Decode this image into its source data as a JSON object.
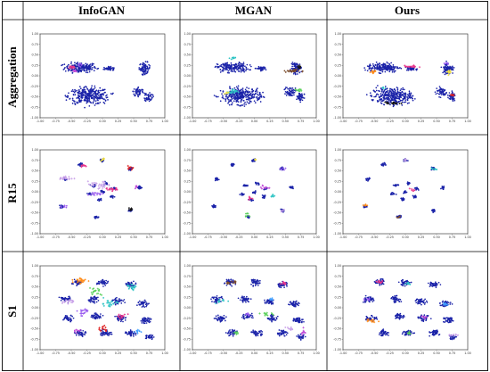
{
  "figure": {
    "column_headers": [
      "InfoGAN",
      "MGAN",
      "Ours"
    ],
    "row_labels": [
      "Aggregation",
      "R15",
      "S1"
    ]
  },
  "colors": {
    "real_points": "#1a22a8",
    "generated_palette": [
      "#e8358a",
      "#c04bd8",
      "#9a5cf0",
      "#2ec4c4",
      "#58d058",
      "#f0e040",
      "#ff8c1a",
      "#e02020",
      "#7a4a2a",
      "#111111",
      "#c8a0e8",
      "#40a0ff"
    ]
  },
  "chart_data": {
    "type": "scatter",
    "layout": "3x3 grid",
    "xlim": [
      -1.0,
      1.0
    ],
    "ylim": [
      -1.0,
      1.0
    ],
    "xticks": [
      "-1.00",
      "-0.75",
      "-0.50",
      "-0.25",
      "0.00",
      "0.25",
      "0.50",
      "0.75",
      "1.00"
    ],
    "yticks": [
      "1.00",
      "0.75",
      "0.50",
      "0.25",
      "0.00",
      "-0.25",
      "-0.50",
      "-0.75",
      "-1.00"
    ],
    "rows": [
      {
        "dataset": "Aggregation",
        "real_clusters": [
          {
            "cx": -0.35,
            "cy": 0.2,
            "rx": 0.28,
            "ry": 0.13,
            "n": 190
          },
          {
            "cx": 0.1,
            "cy": 0.17,
            "rx": 0.09,
            "ry": 0.05,
            "n": 45
          },
          {
            "cx": 0.68,
            "cy": 0.18,
            "rx": 0.1,
            "ry": 0.15,
            "n": 75
          },
          {
            "cx": -0.22,
            "cy": -0.48,
            "rx": 0.36,
            "ry": 0.22,
            "n": 320
          },
          {
            "cx": 0.58,
            "cy": -0.38,
            "rx": 0.1,
            "ry": 0.13,
            "n": 55
          },
          {
            "cx": 0.74,
            "cy": -0.5,
            "rx": 0.07,
            "ry": 0.12,
            "n": 45
          }
        ],
        "panels": [
          {
            "model": "InfoGAN",
            "generated": [
              {
                "cx": -0.5,
                "cy": 0.2,
                "rx": 0.08,
                "ry": 0.05,
                "n": 14,
                "c": 0
              },
              {
                "cx": -0.45,
                "cy": 0.12,
                "rx": 0.06,
                "ry": 0.04,
                "n": 10,
                "c": 1
              },
              {
                "cx": -0.38,
                "cy": 0.25,
                "rx": 0.05,
                "ry": 0.04,
                "n": 8,
                "c": 2
              }
            ]
          },
          {
            "model": "MGAN",
            "generated": [
              {
                "cx": -0.35,
                "cy": 0.42,
                "rx": 0.05,
                "ry": 0.03,
                "n": 10,
                "c": 3
              },
              {
                "cx": 0.6,
                "cy": 0.12,
                "rx": 0.14,
                "ry": 0.04,
                "n": 25,
                "c": 8
              },
              {
                "cx": 0.72,
                "cy": 0.2,
                "rx": 0.03,
                "ry": 0.05,
                "n": 8,
                "c": 9
              },
              {
                "cx": -0.35,
                "cy": -0.38,
                "rx": 0.08,
                "ry": 0.07,
                "n": 22,
                "c": 3
              },
              {
                "cx": -0.45,
                "cy": -0.42,
                "rx": 0.04,
                "ry": 0.03,
                "n": 6,
                "c": 5
              },
              {
                "cx": 0.72,
                "cy": -0.35,
                "rx": 0.05,
                "ry": 0.04,
                "n": 12,
                "c": 4
              }
            ]
          },
          {
            "model": "Ours",
            "generated": [
              {
                "cx": -0.52,
                "cy": 0.08,
                "rx": 0.06,
                "ry": 0.05,
                "n": 14,
                "c": 6
              },
              {
                "cx": 0.1,
                "cy": 0.22,
                "rx": 0.12,
                "ry": 0.03,
                "n": 18,
                "c": 0
              },
              {
                "cx": 0.7,
                "cy": 0.1,
                "rx": 0.04,
                "ry": 0.08,
                "n": 12,
                "c": 5
              },
              {
                "cx": 0.65,
                "cy": 0.3,
                "rx": 0.03,
                "ry": 0.04,
                "n": 6,
                "c": 2
              },
              {
                "cx": -0.2,
                "cy": -0.65,
                "rx": 0.14,
                "ry": 0.03,
                "n": 25,
                "c": 9
              },
              {
                "cx": 0.75,
                "cy": -0.45,
                "rx": 0.04,
                "ry": 0.04,
                "n": 12,
                "c": 7
              },
              {
                "cx": -0.35,
                "cy": -0.3,
                "rx": 0.04,
                "ry": 0.03,
                "n": 6,
                "c": 3
              }
            ]
          }
        ]
      },
      {
        "dataset": "R15",
        "real_clusters": [
          {
            "cx": -0.35,
            "cy": 0.65,
            "rx": 0.04,
            "ry": 0.04,
            "n": 18
          },
          {
            "cx": 0.0,
            "cy": 0.75,
            "rx": 0.04,
            "ry": 0.04,
            "n": 18
          },
          {
            "cx": 0.45,
            "cy": 0.55,
            "rx": 0.04,
            "ry": 0.04,
            "n": 18
          },
          {
            "cx": -0.6,
            "cy": 0.3,
            "rx": 0.04,
            "ry": 0.04,
            "n": 18
          },
          {
            "cx": 0.6,
            "cy": 0.1,
            "rx": 0.04,
            "ry": 0.04,
            "n": 18
          },
          {
            "cx": -0.65,
            "cy": -0.35,
            "rx": 0.04,
            "ry": 0.04,
            "n": 18
          },
          {
            "cx": 0.45,
            "cy": -0.45,
            "rx": 0.04,
            "ry": 0.04,
            "n": 18
          },
          {
            "cx": -0.1,
            "cy": -0.6,
            "rx": 0.04,
            "ry": 0.04,
            "n": 18
          },
          {
            "cx": -0.15,
            "cy": 0.15,
            "rx": 0.04,
            "ry": 0.04,
            "n": 14
          },
          {
            "cx": 0.05,
            "cy": 0.2,
            "rx": 0.04,
            "ry": 0.04,
            "n": 14
          },
          {
            "cx": 0.18,
            "cy": 0.08,
            "rx": 0.04,
            "ry": 0.04,
            "n": 14
          },
          {
            "cx": 0.15,
            "cy": -0.12,
            "rx": 0.04,
            "ry": 0.04,
            "n": 14
          },
          {
            "cx": -0.05,
            "cy": -0.18,
            "rx": 0.04,
            "ry": 0.04,
            "n": 14
          },
          {
            "cx": -0.2,
            "cy": -0.05,
            "rx": 0.04,
            "ry": 0.04,
            "n": 14
          },
          {
            "cx": 0.0,
            "cy": 0.0,
            "rx": 0.04,
            "ry": 0.04,
            "n": 14
          }
        ],
        "panels": [
          {
            "model": "InfoGAN",
            "generated": [
              {
                "cx": -0.58,
                "cy": 0.32,
                "rx": 0.12,
                "ry": 0.05,
                "n": 20,
                "c": 10
              },
              {
                "cx": -0.3,
                "cy": 0.62,
                "rx": 0.06,
                "ry": 0.05,
                "n": 10,
                "c": 0
              },
              {
                "cx": 0.0,
                "cy": 0.78,
                "rx": 0.05,
                "ry": 0.04,
                "n": 8,
                "c": 5
              },
              {
                "cx": 0.45,
                "cy": 0.58,
                "rx": 0.06,
                "ry": 0.04,
                "n": 10,
                "c": 7
              },
              {
                "cx": -0.05,
                "cy": 0.15,
                "rx": 0.2,
                "ry": 0.1,
                "n": 30,
                "c": 10
              },
              {
                "cx": 0.15,
                "cy": 0.05,
                "rx": 0.12,
                "ry": 0.08,
                "n": 18,
                "c": 0
              },
              {
                "cx": -0.1,
                "cy": -0.05,
                "rx": 0.1,
                "ry": 0.06,
                "n": 14,
                "c": 2
              },
              {
                "cx": 0.45,
                "cy": -0.42,
                "rx": 0.05,
                "ry": 0.04,
                "n": 8,
                "c": 9
              },
              {
                "cx": -0.62,
                "cy": -0.35,
                "rx": 0.06,
                "ry": 0.04,
                "n": 8,
                "c": 2
              },
              {
                "cx": 0.55,
                "cy": 0.12,
                "rx": 0.04,
                "ry": 0.04,
                "n": 6,
                "c": 1
              }
            ]
          },
          {
            "model": "MGAN",
            "generated": [
              {
                "cx": 0.02,
                "cy": 0.76,
                "rx": 0.03,
                "ry": 0.03,
                "n": 6,
                "c": 5
              },
              {
                "cx": 0.45,
                "cy": 0.55,
                "rx": 0.04,
                "ry": 0.03,
                "n": 6,
                "c": 2
              },
              {
                "cx": 0.15,
                "cy": 0.1,
                "rx": 0.08,
                "ry": 0.05,
                "n": 12,
                "c": 1
              },
              {
                "cx": -0.08,
                "cy": -0.15,
                "rx": 0.05,
                "ry": 0.04,
                "n": 8,
                "c": 0
              },
              {
                "cx": -0.12,
                "cy": -0.55,
                "rx": 0.03,
                "ry": 0.04,
                "n": 8,
                "c": 4
              },
              {
                "cx": 0.3,
                "cy": -0.1,
                "rx": 0.05,
                "ry": 0.04,
                "n": 8,
                "c": 3
              },
              {
                "cx": 0.45,
                "cy": -0.45,
                "rx": 0.03,
                "ry": 0.03,
                "n": 5,
                "c": 10
              }
            ]
          },
          {
            "model": "Ours",
            "generated": [
              {
                "cx": 0.45,
                "cy": 0.55,
                "rx": 0.05,
                "ry": 0.03,
                "n": 8,
                "c": 3
              },
              {
                "cx": 0.0,
                "cy": 0.75,
                "rx": 0.03,
                "ry": 0.03,
                "n": 5,
                "c": 10
              },
              {
                "cx": -0.62,
                "cy": -0.33,
                "rx": 0.05,
                "ry": 0.03,
                "n": 8,
                "c": 6
              },
              {
                "cx": 0.12,
                "cy": 0.05,
                "rx": 0.05,
                "ry": 0.04,
                "n": 6,
                "c": 0
              },
              {
                "cx": -0.1,
                "cy": -0.6,
                "rx": 0.03,
                "ry": 0.03,
                "n": 5,
                "c": 8
              }
            ]
          }
        ]
      },
      {
        "dataset": "S1",
        "real_clusters": [
          {
            "cx": -0.4,
            "cy": 0.6,
            "rx": 0.1,
            "ry": 0.08,
            "n": 40
          },
          {
            "cx": 0.0,
            "cy": 0.6,
            "rx": 0.1,
            "ry": 0.08,
            "n": 40
          },
          {
            "cx": 0.45,
            "cy": 0.55,
            "rx": 0.1,
            "ry": 0.08,
            "n": 40
          },
          {
            "cx": -0.6,
            "cy": 0.2,
            "rx": 0.1,
            "ry": 0.08,
            "n": 40
          },
          {
            "cx": -0.15,
            "cy": 0.2,
            "rx": 0.1,
            "ry": 0.08,
            "n": 40
          },
          {
            "cx": 0.25,
            "cy": 0.15,
            "rx": 0.1,
            "ry": 0.08,
            "n": 40
          },
          {
            "cx": 0.65,
            "cy": 0.1,
            "rx": 0.1,
            "ry": 0.08,
            "n": 40
          },
          {
            "cx": -0.55,
            "cy": -0.25,
            "rx": 0.1,
            "ry": 0.08,
            "n": 40
          },
          {
            "cx": -0.1,
            "cy": -0.2,
            "rx": 0.1,
            "ry": 0.08,
            "n": 40
          },
          {
            "cx": 0.3,
            "cy": -0.25,
            "rx": 0.1,
            "ry": 0.08,
            "n": 40
          },
          {
            "cx": 0.7,
            "cy": -0.3,
            "rx": 0.1,
            "ry": 0.08,
            "n": 40
          },
          {
            "cx": -0.35,
            "cy": -0.6,
            "rx": 0.1,
            "ry": 0.08,
            "n": 40
          },
          {
            "cx": 0.05,
            "cy": -0.6,
            "rx": 0.1,
            "ry": 0.08,
            "n": 40
          },
          {
            "cx": 0.45,
            "cy": -0.6,
            "rx": 0.1,
            "ry": 0.08,
            "n": 40
          },
          {
            "cx": 0.75,
            "cy": -0.7,
            "rx": 0.08,
            "ry": 0.06,
            "n": 30
          }
        ],
        "panels": [
          {
            "model": "InfoGAN",
            "generated": [
              {
                "cx": -0.35,
                "cy": 0.65,
                "rx": 0.12,
                "ry": 0.1,
                "n": 25,
                "c": 6
              },
              {
                "cx": -0.1,
                "cy": 0.4,
                "rx": 0.12,
                "ry": 0.1,
                "n": 20,
                "c": 4
              },
              {
                "cx": 0.45,
                "cy": 0.5,
                "rx": 0.1,
                "ry": 0.08,
                "n": 18,
                "c": 3
              },
              {
                "cx": -0.55,
                "cy": 0.15,
                "rx": 0.1,
                "ry": 0.08,
                "n": 18,
                "c": 10
              },
              {
                "cx": 0.1,
                "cy": 0.1,
                "rx": 0.15,
                "ry": 0.1,
                "n": 25,
                "c": 3
              },
              {
                "cx": -0.3,
                "cy": -0.1,
                "rx": 0.12,
                "ry": 0.1,
                "n": 20,
                "c": 2
              },
              {
                "cx": 0.3,
                "cy": -0.2,
                "rx": 0.1,
                "ry": 0.08,
                "n": 14,
                "c": 0
              },
              {
                "cx": 0.0,
                "cy": -0.5,
                "rx": 0.1,
                "ry": 0.08,
                "n": 14,
                "c": 7
              },
              {
                "cx": -0.4,
                "cy": -0.55,
                "rx": 0.08,
                "ry": 0.06,
                "n": 10,
                "c": 1
              },
              {
                "cx": 0.55,
                "cy": -0.55,
                "rx": 0.08,
                "ry": 0.06,
                "n": 10,
                "c": 11
              }
            ]
          },
          {
            "model": "MGAN",
            "generated": [
              {
                "cx": -0.38,
                "cy": 0.6,
                "rx": 0.1,
                "ry": 0.04,
                "n": 14,
                "c": 8
              },
              {
                "cx": 0.48,
                "cy": 0.58,
                "rx": 0.06,
                "ry": 0.04,
                "n": 10,
                "c": 0
              },
              {
                "cx": -0.55,
                "cy": 0.15,
                "rx": 0.08,
                "ry": 0.05,
                "n": 12,
                "c": 3
              },
              {
                "cx": 0.2,
                "cy": -0.15,
                "rx": 0.1,
                "ry": 0.05,
                "n": 14,
                "c": 4
              },
              {
                "cx": -0.1,
                "cy": -0.15,
                "rx": 0.05,
                "ry": 0.04,
                "n": 8,
                "c": 2
              },
              {
                "cx": 0.55,
                "cy": -0.5,
                "rx": 0.08,
                "ry": 0.05,
                "n": 10,
                "c": 10
              },
              {
                "cx": 0.8,
                "cy": -0.6,
                "rx": 0.06,
                "ry": 0.1,
                "n": 12,
                "c": 1
              },
              {
                "cx": -0.3,
                "cy": -0.6,
                "rx": 0.06,
                "ry": 0.04,
                "n": 8,
                "c": 4
              },
              {
                "cx": 0.28,
                "cy": 0.2,
                "rx": 0.05,
                "ry": 0.04,
                "n": 8,
                "c": 11
              }
            ]
          },
          {
            "model": "Ours",
            "generated": [
              {
                "cx": -0.4,
                "cy": 0.62,
                "rx": 0.06,
                "ry": 0.04,
                "n": 10,
                "c": 0
              },
              {
                "cx": 0.05,
                "cy": 0.58,
                "rx": 0.05,
                "ry": 0.04,
                "n": 8,
                "c": 3
              },
              {
                "cx": -0.6,
                "cy": 0.2,
                "rx": 0.05,
                "ry": 0.04,
                "n": 8,
                "c": 2
              },
              {
                "cx": 0.65,
                "cy": 0.1,
                "rx": 0.05,
                "ry": 0.04,
                "n": 8,
                "c": 11
              },
              {
                "cx": -0.55,
                "cy": -0.3,
                "rx": 0.1,
                "ry": 0.05,
                "n": 14,
                "c": 6
              },
              {
                "cx": 0.3,
                "cy": -0.22,
                "rx": 0.05,
                "ry": 0.04,
                "n": 8,
                "c": 1
              },
              {
                "cx": 0.75,
                "cy": -0.65,
                "rx": 0.08,
                "ry": 0.06,
                "n": 12,
                "c": 10
              },
              {
                "cx": 0.05,
                "cy": -0.6,
                "rx": 0.05,
                "ry": 0.04,
                "n": 6,
                "c": 4
              }
            ]
          }
        ]
      }
    ]
  }
}
